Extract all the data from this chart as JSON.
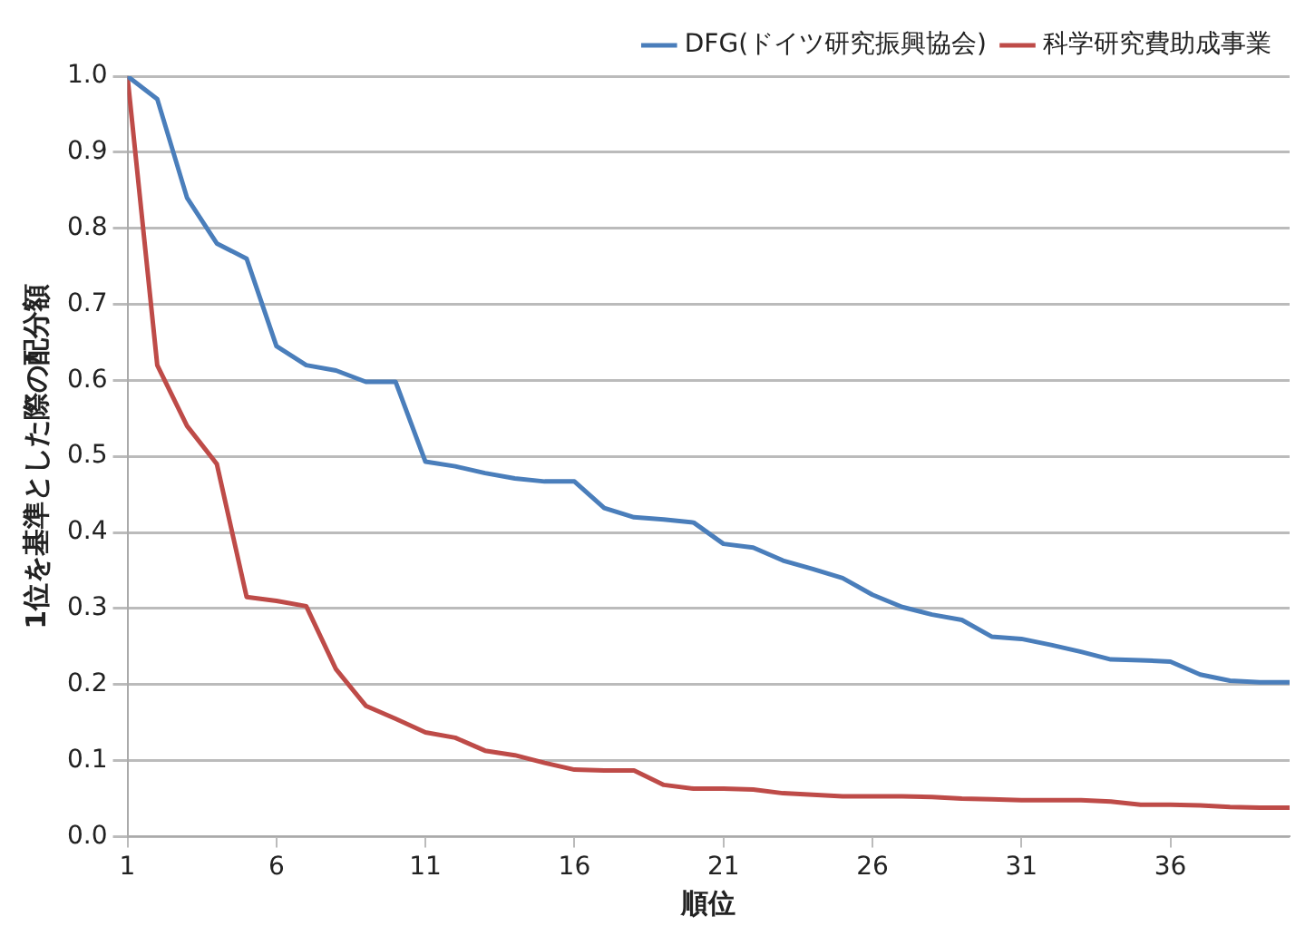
{
  "chart_data": {
    "type": "line",
    "xlabel": "順位",
    "ylabel": "1位を基準とした際の配分額",
    "x": [
      1,
      2,
      3,
      4,
      5,
      6,
      7,
      8,
      9,
      10,
      11,
      12,
      13,
      14,
      15,
      16,
      17,
      18,
      19,
      20,
      21,
      22,
      23,
      24,
      25,
      26,
      27,
      28,
      29,
      30,
      31,
      32,
      33,
      34,
      35,
      36,
      37,
      38,
      39,
      40
    ],
    "xlim": [
      1,
      40
    ],
    "xticks": [
      1,
      6,
      11,
      16,
      21,
      26,
      31,
      36
    ],
    "series": [
      {
        "name": "DFG(ドイツ研究振興協会)",
        "color": "#4a7ebb",
        "values": [
          1.0,
          0.97,
          0.84,
          0.78,
          0.76,
          0.645,
          0.62,
          0.613,
          0.598,
          0.598,
          0.493,
          0.487,
          0.478,
          0.471,
          0.467,
          0.467,
          0.432,
          0.42,
          0.417,
          0.413,
          0.385,
          0.38,
          0.363,
          0.352,
          0.34,
          0.318,
          0.302,
          0.292,
          0.285,
          0.263,
          0.26,
          0.252,
          0.243,
          0.233,
          0.232,
          0.23,
          0.213,
          0.205,
          0.203,
          0.203
        ]
      },
      {
        "name": "科学研究費助成事業",
        "color": "#be4b48",
        "values": [
          1.0,
          0.62,
          0.54,
          0.49,
          0.315,
          0.31,
          0.303,
          0.22,
          0.172,
          0.155,
          0.137,
          0.13,
          0.113,
          0.107,
          0.097,
          0.088,
          0.087,
          0.087,
          0.068,
          0.063,
          0.063,
          0.062,
          0.057,
          0.055,
          0.053,
          0.053,
          0.053,
          0.052,
          0.05,
          0.049,
          0.048,
          0.048,
          0.048,
          0.046,
          0.042,
          0.042,
          0.041,
          0.039,
          0.038,
          0.038
        ]
      }
    ],
    "ylim": [
      0,
      1
    ],
    "yticks": [
      {
        "value": 0,
        "label": "0.0"
      },
      0.1,
      0.2,
      0.3,
      0.4,
      0.5,
      0.6,
      0.7,
      0.8,
      0.9,
      {
        "value": 1,
        "label": "1.0"
      }
    ],
    "grid": "y",
    "legend": "top right",
    "marker": "none",
    "line_style": "solid"
  }
}
